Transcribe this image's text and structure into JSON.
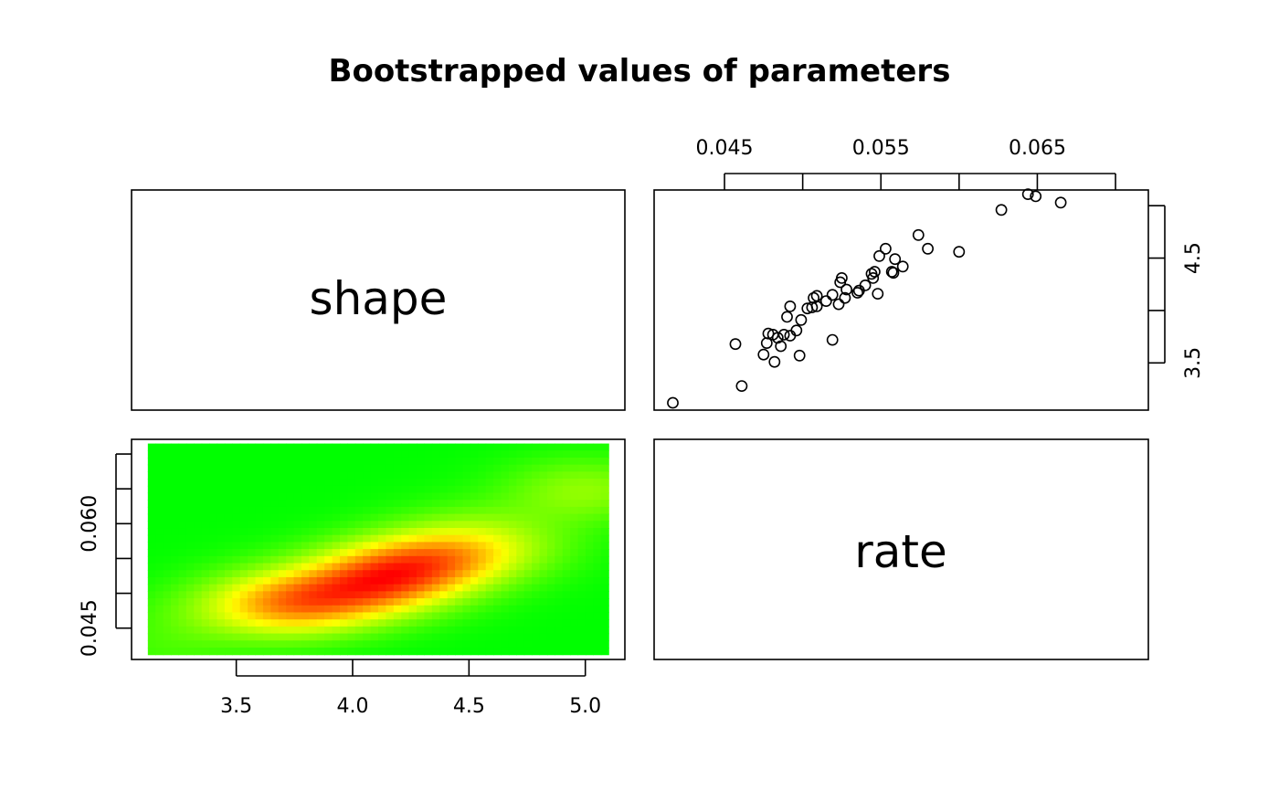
{
  "chart_data": {
    "type": "scatter",
    "title": "Bootstrapped values of parameters",
    "variables": [
      "shape",
      "rate"
    ],
    "panels": {
      "upper": {
        "type": "scatter",
        "x_variable": "rate",
        "y_variable": "shape",
        "xlim": [
          0.0405,
          0.0721
        ],
        "ylim": [
          3.05,
          5.15
        ],
        "x_ticks": [
          0.045,
          0.05,
          0.055,
          0.06,
          0.065,
          0.07
        ],
        "x_tick_labels": [
          "0.045",
          "",
          "0.055",
          "",
          "0.065",
          ""
        ],
        "y_ticks": [
          3.5,
          4.0,
          4.5,
          5.0
        ],
        "y_tick_labels": [
          "3.5",
          "",
          "4.5",
          ""
        ],
        "points": [
          [
            0.0417,
            3.12
          ],
          [
            0.0461,
            3.28
          ],
          [
            0.0457,
            3.68
          ],
          [
            0.0475,
            3.58
          ],
          [
            0.0478,
            3.78
          ],
          [
            0.0477,
            3.69
          ],
          [
            0.0481,
            3.77
          ],
          [
            0.0484,
            3.74
          ],
          [
            0.0482,
            3.51
          ],
          [
            0.0486,
            3.66
          ],
          [
            0.0488,
            3.77
          ],
          [
            0.0492,
            3.76
          ],
          [
            0.049,
            3.94
          ],
          [
            0.0492,
            4.04
          ],
          [
            0.0496,
            3.81
          ],
          [
            0.0498,
            3.57
          ],
          [
            0.0499,
            3.91
          ],
          [
            0.0503,
            4.02
          ],
          [
            0.0506,
            4.03
          ],
          [
            0.0507,
            4.12
          ],
          [
            0.0509,
            4.14
          ],
          [
            0.0509,
            4.04
          ],
          [
            0.0515,
            4.09
          ],
          [
            0.0519,
            4.15
          ],
          [
            0.0519,
            3.72
          ],
          [
            0.0523,
            4.06
          ],
          [
            0.0524,
            4.27
          ],
          [
            0.0525,
            4.31
          ],
          [
            0.0527,
            4.12
          ],
          [
            0.0528,
            4.2
          ],
          [
            0.0535,
            4.17
          ],
          [
            0.0536,
            4.19
          ],
          [
            0.054,
            4.24
          ],
          [
            0.0544,
            4.35
          ],
          [
            0.0545,
            4.31
          ],
          [
            0.0546,
            4.37
          ],
          [
            0.0548,
            4.16
          ],
          [
            0.0549,
            4.52
          ],
          [
            0.0557,
            4.37
          ],
          [
            0.0558,
            4.36
          ],
          [
            0.0553,
            4.59
          ],
          [
            0.0559,
            4.49
          ],
          [
            0.0564,
            4.42
          ],
          [
            0.0574,
            4.72
          ],
          [
            0.058,
            4.59
          ],
          [
            0.06,
            4.56
          ],
          [
            0.0627,
            4.96
          ],
          [
            0.0644,
            5.11
          ],
          [
            0.0649,
            5.09
          ],
          [
            0.0665,
            5.03
          ]
        ]
      },
      "lower": {
        "type": "heatmap",
        "x_variable": "shape",
        "y_variable": "rate",
        "xlim": [
          3.05,
          5.17
        ],
        "ylim": [
          0.0405,
          0.0721
        ],
        "x_ticks": [
          3.5,
          4.0,
          4.5,
          5.0
        ],
        "x_tick_labels": [
          "3.5",
          "4.0",
          "4.5",
          "5.0"
        ],
        "y_ticks": [
          0.045,
          0.05,
          0.055,
          0.06,
          0.065,
          0.07
        ],
        "y_tick_labels": [
          "0.045",
          "",
          "",
          "0.060",
          "",
          ""
        ],
        "color_ramp": [
          "#00ff00",
          "#ffff00",
          "#ff0000"
        ],
        "density_peak": {
          "x": 4.15,
          "y": 0.0555
        }
      }
    }
  }
}
